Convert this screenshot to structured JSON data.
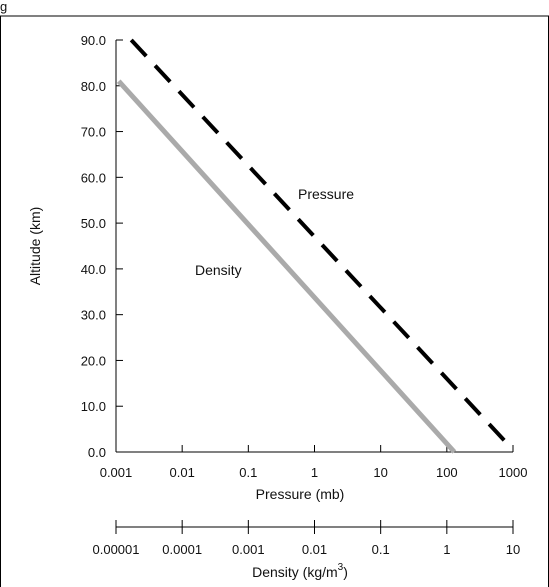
{
  "chart_data": {
    "type": "line",
    "corner_text": "g",
    "ylabel": "Altitude (km)",
    "y_ticks": [
      "0.0",
      "10.0",
      "20.0",
      "30.0",
      "40.0",
      "50.0",
      "60.0",
      "70.0",
      "80.0",
      "90.0"
    ],
    "ylim": [
      0,
      90
    ],
    "pressure_axis": {
      "label": "Pressure (mb)",
      "scale": "log",
      "ticks": [
        "0.001",
        "0.01",
        "0.1",
        "1",
        "10",
        "100",
        "1000"
      ],
      "tick_values": [
        0.001,
        0.01,
        0.1,
        1,
        10,
        100,
        1000
      ]
    },
    "density_axis": {
      "label": "Density (kg/m",
      "label_sup": "3",
      "label_end": ")",
      "scale": "log",
      "ticks": [
        "0.00001",
        "0.0001",
        "0.001",
        "0.01",
        "0.1",
        "1",
        "10"
      ],
      "tick_values": [
        1e-05,
        0.0001,
        0.001,
        0.01,
        0.1,
        1,
        10
      ]
    },
    "series": [
      {
        "name": "Pressure",
        "axis": "pressure",
        "style": "dashed",
        "color": "#000000",
        "points": [
          {
            "x": 0.0017,
            "y": 90.0
          },
          {
            "x": 800,
            "y": 2.0
          }
        ]
      },
      {
        "name": "Density",
        "axis": "density",
        "style": "solid",
        "color": "#aaaaaa",
        "points": [
          {
            "x": 1.1e-05,
            "y": 81.0
          },
          {
            "x": 1.3,
            "y": 0.0
          }
        ]
      }
    ],
    "grid": false
  }
}
